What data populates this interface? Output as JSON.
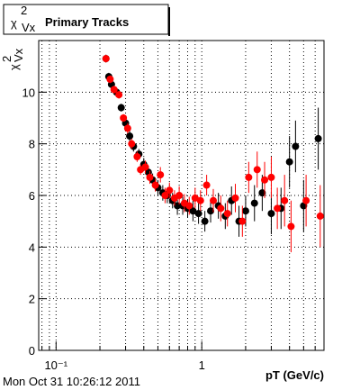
{
  "chart_data": {
    "type": "scatter",
    "title": "Primary Tracks",
    "symbol": "χ",
    "symbol_sup": "2",
    "symbol_sub": "Vx",
    "x_label": "pT (GeV/c)",
    "timestamp": "Mon Oct 31 10:26:12 2011",
    "log_x": true,
    "grid": true,
    "xlim": [
      0.076,
      6.9
    ],
    "xticks": [
      {
        "value": 0.1,
        "label": "10⁻¹"
      },
      1
    ],
    "xminor_ticks": [
      0.08,
      0.09,
      0.2,
      0.3,
      0.4,
      0.5,
      0.6,
      0.7,
      0.8,
      0.9,
      2,
      3,
      4,
      5,
      6
    ],
    "ylim": [
      0,
      12
    ],
    "yticks": [
      0,
      2,
      4,
      6,
      8,
      10
    ],
    "series": [
      {
        "color": "#000000",
        "x": [
          0.22,
          0.23,
          0.24,
          0.26,
          0.28,
          0.3,
          0.32,
          0.34,
          0.37,
          0.4,
          0.43,
          0.46,
          0.5,
          0.54,
          0.58,
          0.63,
          0.68,
          0.74,
          0.8,
          0.87,
          0.95,
          1.05,
          1.15,
          1.3,
          1.45,
          1.6,
          1.8,
          2.0,
          2.3,
          2.6,
          3.0,
          3.5,
          4.0,
          4.4,
          5.0,
          6.3
        ],
        "values": [
          11.3,
          10.6,
          10.3,
          10.0,
          9.4,
          8.8,
          8.3,
          7.9,
          7.6,
          7.2,
          6.9,
          6.6,
          6.3,
          6.1,
          6.0,
          5.8,
          5.6,
          5.6,
          5.5,
          5.4,
          5.3,
          5.0,
          5.4,
          5.6,
          5.2,
          5.8,
          5.0,
          5.4,
          5.7,
          6.1,
          5.3,
          5.5,
          7.3,
          7.9,
          5.6,
          8.2
        ],
        "errors": [
          0.15,
          0.15,
          0.15,
          0.15,
          0.15,
          0.2,
          0.2,
          0.2,
          0.2,
          0.25,
          0.25,
          0.25,
          0.3,
          0.3,
          0.3,
          0.3,
          0.35,
          0.35,
          0.35,
          0.4,
          0.4,
          0.4,
          0.45,
          0.5,
          0.5,
          0.55,
          0.6,
          0.6,
          0.7,
          0.7,
          0.8,
          0.8,
          1.0,
          1.0,
          1.0,
          1.2
        ]
      },
      {
        "color": "#ff0000",
        "x": [
          0.22,
          0.235,
          0.25,
          0.27,
          0.29,
          0.31,
          0.33,
          0.36,
          0.38,
          0.41,
          0.44,
          0.48,
          0.52,
          0.56,
          0.6,
          0.65,
          0.7,
          0.76,
          0.82,
          0.9,
          0.98,
          1.08,
          1.2,
          1.35,
          1.5,
          1.7,
          1.9,
          2.1,
          2.4,
          2.7,
          3.0,
          3.3,
          3.7,
          4.1,
          5.2,
          6.5
        ],
        "values": [
          11.3,
          10.5,
          10.1,
          9.9,
          9.0,
          8.6,
          8.0,
          7.5,
          7.0,
          7.1,
          6.7,
          6.4,
          6.8,
          6.0,
          6.2,
          5.9,
          6.0,
          5.7,
          5.6,
          5.9,
          5.8,
          6.4,
          5.8,
          5.5,
          5.3,
          5.9,
          5.0,
          6.7,
          7.0,
          6.6,
          6.7,
          5.5,
          5.8,
          4.8,
          5.8,
          5.2
        ],
        "errors": [
          0.15,
          0.15,
          0.15,
          0.15,
          0.15,
          0.2,
          0.2,
          0.2,
          0.2,
          0.25,
          0.25,
          0.25,
          0.3,
          0.3,
          0.3,
          0.3,
          0.35,
          0.35,
          0.35,
          0.4,
          0.4,
          0.4,
          0.45,
          0.5,
          0.5,
          0.55,
          0.6,
          0.6,
          0.7,
          0.7,
          0.8,
          0.8,
          1.0,
          1.0,
          1.0,
          1.2
        ]
      }
    ]
  }
}
